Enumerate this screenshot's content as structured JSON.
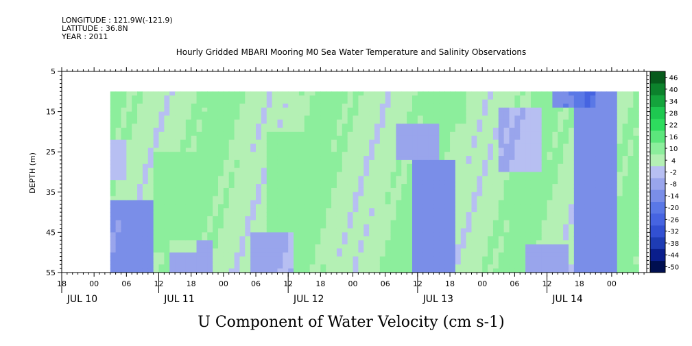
{
  "header": {
    "longitude": "LONGITUDE : 121.9W(-121.9)",
    "latitude": "LATITUDE : 36.8N",
    "year": "YEAR : 2011",
    "title": "Hourly Gridded MBARI Mooring M0 Sea Water Temperature and Salinity Observations"
  },
  "chart_data": {
    "type": "heatmap",
    "title": "Hourly Gridded MBARI Mooring M0 Sea Water Temperature and Salinity Observations",
    "xlabel": "U Component of Water Velocity (cm s-1)",
    "ylabel": "DEPTH (m)",
    "y_ticks": [
      5,
      15,
      25,
      35,
      45,
      55
    ],
    "ylim": [
      55,
      5
    ],
    "y_data_range": [
      10,
      55
    ],
    "x_start_hours": -6,
    "x_end_hours": 102.5,
    "x_data_start_hours": 3,
    "x_data_end_hours": 101,
    "x_hour_labels": [
      "18",
      "00",
      "06",
      "12",
      "18",
      "00",
      "06",
      "12",
      "18",
      "00",
      "06",
      "12",
      "18",
      "00",
      "06",
      "12",
      "18",
      "00"
    ],
    "x_hour_values": [
      -6,
      0,
      6,
      12,
      18,
      24,
      30,
      36,
      42,
      48,
      54,
      60,
      66,
      72,
      78,
      84,
      90,
      96
    ],
    "date_labels": [
      {
        "text": "JUL 10",
        "hour": -6
      },
      {
        "text": "JUL 11",
        "hour": 12
      },
      {
        "text": "JUL 12",
        "hour": 36
      },
      {
        "text": "JUL 13",
        "hour": 60
      },
      {
        "text": "JUL 14",
        "hour": 84
      }
    ],
    "colorbar": {
      "levels": [
        -50,
        -44,
        -38,
        -32,
        -26,
        -20,
        -14,
        -8,
        -2,
        4,
        10,
        16,
        22,
        28,
        34,
        40,
        46
      ],
      "labels": [
        "46",
        "40",
        "34",
        "28",
        "22",
        "16",
        "10",
        "4",
        "-2",
        "-8",
        "-14",
        "-20",
        "-26",
        "-32",
        "-38",
        "-44",
        "-50"
      ],
      "colors": [
        "#000f50",
        "#0a1e8c",
        "#1e3cb4",
        "#3250d2",
        "#4664e1",
        "#5a78e6",
        "#7a8ee8",
        "#99a5ec",
        "#b7bff2",
        "#b4f0b4",
        "#8cee9c",
        "#5ce67c",
        "#2edc5e",
        "#1ec850",
        "#14a43c",
        "#0c822c",
        "#075a1c"
      ]
    },
    "velocity_features": [
      {
        "center_hour": 7,
        "depth_top": 37,
        "depth_bottom": 55,
        "value": -8
      },
      {
        "center_hour": 18,
        "depth_top": 47,
        "depth_bottom": 55,
        "value": -4
      },
      {
        "center_hour": 33,
        "depth_top": 45,
        "depth_bottom": 55,
        "value": -3
      },
      {
        "center_hour": 63,
        "depth_top": 27,
        "depth_bottom": 55,
        "value": -10
      },
      {
        "center_hour": 60,
        "depth_top": 18,
        "depth_bottom": 27,
        "value": -4
      },
      {
        "center_hour": 93,
        "depth_top": 10,
        "depth_bottom": 55,
        "value": -10
      },
      {
        "center_hour": 89,
        "depth_top": 10,
        "depth_bottom": 14,
        "value": -14
      },
      {
        "center_hour": 84,
        "depth_top": 48,
        "depth_bottom": 55,
        "value": -5
      },
      {
        "center_hour": 79,
        "depth_top": 14,
        "depth_bottom": 30,
        "value": -2
      },
      {
        "center_hour": 36,
        "depth_top": 20,
        "depth_bottom": 45,
        "value": 14
      },
      {
        "center_hour": 15,
        "depth_top": 25,
        "depth_bottom": 50,
        "value": 12
      },
      {
        "center_hour": 65,
        "depth_top": 10,
        "depth_bottom": 18,
        "value": 12
      },
      {
        "center_hour": 2,
        "depth_top": 22,
        "depth_bottom": 32,
        "value": 2
      }
    ]
  }
}
